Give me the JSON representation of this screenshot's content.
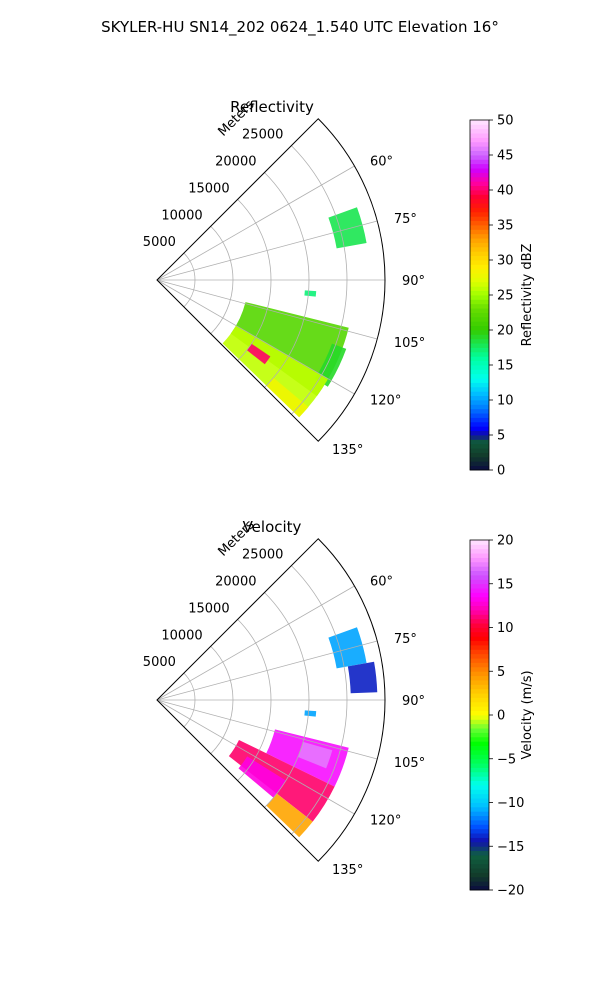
{
  "suptitle": "SKYLER-HU  SN14_202  0624_1.540 UTC Elevation 16°",
  "chart_data": [
    {
      "type": "polar-sector",
      "title": "Reflectivity",
      "r_label": "Meters",
      "r_ticks": [
        5000,
        10000,
        15000,
        20000,
        25000
      ],
      "r_max": 30000,
      "theta_ticks": [
        60,
        75,
        90,
        105,
        120,
        135
      ],
      "theta_range": [
        45,
        135
      ],
      "grid": true,
      "colorbar": {
        "label": "Reflectivity dBZ",
        "range": [
          0,
          50
        ],
        "ticks": [
          0,
          5,
          10,
          15,
          20,
          25,
          30,
          35,
          40,
          45,
          50
        ]
      },
      "echo_regions": [
        {
          "azimuth": [
            70,
            80
          ],
          "range_m": [
            24000,
            28000
          ],
          "value": 18
        },
        {
          "azimuth": [
            94,
            96
          ],
          "range_m": [
            19500,
            21000
          ],
          "value": 17
        },
        {
          "azimuth": [
            104,
            126
          ],
          "range_m": [
            12000,
            26000
          ],
          "value": 22
        },
        {
          "azimuth": [
            110,
            122
          ],
          "range_m": [
            24500,
            26500
          ],
          "value": 19
        },
        {
          "azimuth": [
            120,
            134
          ],
          "range_m": [
            12000,
            26000
          ],
          "value": 26
        },
        {
          "azimuth": [
            124,
            128
          ],
          "range_m": [
            15000,
            18000
          ],
          "value": 40
        },
        {
          "azimuth": [
            130,
            134
          ],
          "range_m": [
            20000,
            26000
          ],
          "value": 28
        }
      ]
    },
    {
      "type": "polar-sector",
      "title": "Velocity",
      "r_label": "Meters",
      "r_ticks": [
        5000,
        10000,
        15000,
        20000,
        25000
      ],
      "r_max": 30000,
      "theta_ticks": [
        60,
        75,
        90,
        105,
        120,
        135
      ],
      "theta_range": [
        45,
        135
      ],
      "grid": true,
      "colorbar": {
        "label": "Velocity (m/s)",
        "range": [
          -20,
          20
        ],
        "ticks": [
          -20,
          -15,
          -10,
          -5,
          0,
          5,
          10,
          15,
          20
        ]
      },
      "echo_regions": [
        {
          "azimuth": [
            70,
            80
          ],
          "range_m": [
            24000,
            28000
          ],
          "value": -11
        },
        {
          "azimuth": [
            80,
            88
          ],
          "range_m": [
            25500,
            29000
          ],
          "value": -14
        },
        {
          "azimuth": [
            94,
            96
          ],
          "range_m": [
            19500,
            21000
          ],
          "value": -11
        },
        {
          "azimuth": [
            104,
            116
          ],
          "range_m": [
            16000,
            26000
          ],
          "value": 14
        },
        {
          "azimuth": [
            106,
            112
          ],
          "range_m": [
            20000,
            24000
          ],
          "value": 17
        },
        {
          "azimuth": [
            116,
            128
          ],
          "range_m": [
            12000,
            26000
          ],
          "value": 11
        },
        {
          "azimuth": [
            122,
            130
          ],
          "range_m": [
            14000,
            20000
          ],
          "value": 13
        },
        {
          "azimuth": [
            128,
            134
          ],
          "range_m": [
            20000,
            26000
          ],
          "value": 4
        }
      ]
    }
  ],
  "colors": {
    "grid": "#b0b0b0",
    "axes": "#000000"
  }
}
